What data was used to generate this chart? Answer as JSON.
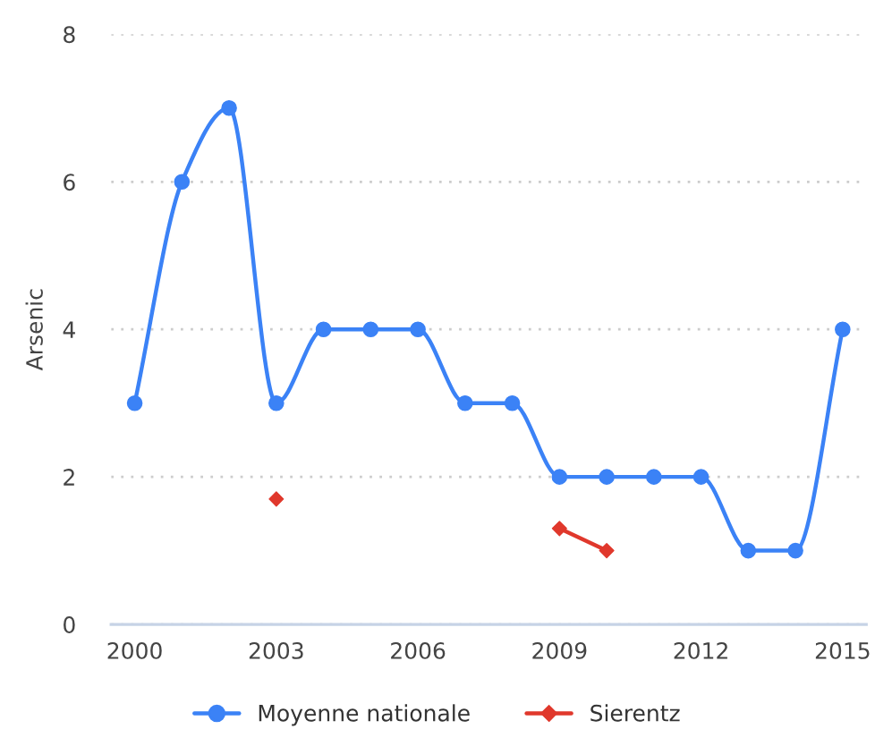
{
  "chart_data": {
    "type": "line",
    "ylabel": "Arsenic",
    "categories": [
      "2000",
      null,
      null,
      "2003",
      null,
      null,
      "2006",
      null,
      null,
      "2009",
      null,
      null,
      "2012",
      null,
      null,
      "2015"
    ],
    "series": [
      {
        "name": "Moyenne nationale",
        "color": "#3b82f6",
        "marker": "circle",
        "values": [
          3,
          6,
          7,
          3,
          4,
          4,
          4,
          3,
          3,
          2,
          2,
          2,
          2,
          1,
          1,
          4
        ]
      },
      {
        "name": "Sierentz",
        "color": "#e0382c",
        "marker": "diamond",
        "values": [
          null,
          null,
          null,
          1.7,
          null,
          null,
          null,
          null,
          null,
          1.3,
          1.0,
          null,
          null,
          null,
          null,
          null
        ]
      }
    ],
    "ylim": [
      0,
      8
    ],
    "yticks": [
      0,
      2,
      4,
      6,
      8
    ],
    "grid": "y",
    "legend": "bottom",
    "line_style": "solid"
  }
}
